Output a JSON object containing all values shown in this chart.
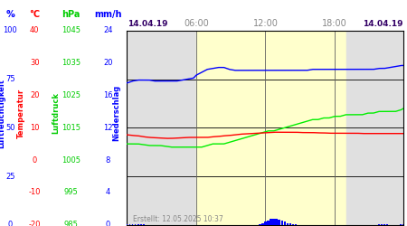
{
  "title_left": "14.04.19",
  "title_right": "14.04.19",
  "x_ticks": [
    "06:00",
    "12:00",
    "18:00"
  ],
  "x_tick_positions": [
    0.25,
    0.5,
    0.75
  ],
  "date_label": "Erstellt: 12.05.2025 10:37",
  "axis_label_blue": "Luftfeuchtigkeit",
  "axis_label_red": "Temperatur",
  "axis_label_green": "Luftdruck",
  "axis_label_blue2": "Niederschlag",
  "plot_bg_day": "#FFFFCC",
  "plot_bg_night": "#E0E0E0",
  "sunrise": 0.25,
  "sunset": 0.792,
  "pct_range": [
    0,
    100
  ],
  "temp_range": [
    -20,
    40
  ],
  "hpa_range": [
    985,
    1045
  ],
  "mmh_range": [
    0,
    24
  ],
  "pct_ticks": [
    0,
    25,
    50,
    75,
    100
  ],
  "temp_ticks": [
    -20,
    -10,
    0,
    10,
    20,
    30,
    40
  ],
  "hpa_ticks": [
    985,
    995,
    1005,
    1015,
    1025,
    1035,
    1045
  ],
  "mmh_ticks": [
    0,
    4,
    8,
    12,
    16,
    20,
    24
  ],
  "blue_x": [
    0.0,
    0.01,
    0.02,
    0.04,
    0.06,
    0.08,
    0.1,
    0.12,
    0.14,
    0.16,
    0.18,
    0.2,
    0.22,
    0.24,
    0.25,
    0.27,
    0.29,
    0.31,
    0.33,
    0.35,
    0.37,
    0.39,
    0.41,
    0.43,
    0.45,
    0.47,
    0.49,
    0.51,
    0.53,
    0.55,
    0.57,
    0.59,
    0.61,
    0.63,
    0.65,
    0.67,
    0.69,
    0.71,
    0.73,
    0.75,
    0.77,
    0.79,
    0.81,
    0.83,
    0.85,
    0.87,
    0.89,
    0.91,
    0.93,
    0.95,
    0.97,
    0.99,
    1.0
  ],
  "blue_y": [
    73,
    73.5,
    74,
    74.5,
    74.5,
    74.5,
    74,
    74,
    74,
    74,
    74,
    74.5,
    75,
    75.5,
    77,
    78.5,
    80,
    80.5,
    81,
    81,
    80,
    79.5,
    79.5,
    79.5,
    79.5,
    79.5,
    79.5,
    79.5,
    79.5,
    79.5,
    79.5,
    79.5,
    79.5,
    79.5,
    79.5,
    80,
    80,
    80,
    80,
    80,
    80,
    80,
    80,
    80,
    80,
    80,
    80,
    80.5,
    80.5,
    81,
    81.5,
    82,
    82
  ],
  "green_x": [
    0.0,
    0.04,
    0.08,
    0.12,
    0.16,
    0.2,
    0.24,
    0.25,
    0.27,
    0.29,
    0.31,
    0.33,
    0.35,
    0.37,
    0.39,
    0.41,
    0.43,
    0.45,
    0.47,
    0.49,
    0.51,
    0.53,
    0.55,
    0.57,
    0.59,
    0.61,
    0.63,
    0.65,
    0.67,
    0.69,
    0.71,
    0.73,
    0.75,
    0.77,
    0.79,
    0.81,
    0.83,
    0.85,
    0.87,
    0.89,
    0.91,
    0.93,
    0.95,
    0.97,
    0.99,
    1.0
  ],
  "green_y": [
    1010,
    1010,
    1009.5,
    1009.5,
    1009,
    1009,
    1009,
    1009,
    1009,
    1009.5,
    1010,
    1010,
    1010,
    1010.5,
    1011,
    1011.5,
    1012,
    1012.5,
    1013,
    1013.5,
    1014,
    1014,
    1014.5,
    1015,
    1015.5,
    1016,
    1016.5,
    1017,
    1017.5,
    1017.5,
    1018,
    1018,
    1018.5,
    1018.5,
    1019,
    1019,
    1019,
    1019,
    1019.5,
    1019.5,
    1020,
    1020,
    1020,
    1020,
    1020.5,
    1021
  ],
  "red_x": [
    0.0,
    0.02,
    0.04,
    0.06,
    0.08,
    0.1,
    0.12,
    0.14,
    0.16,
    0.18,
    0.2,
    0.22,
    0.24,
    0.25,
    0.27,
    0.29,
    0.31,
    0.33,
    0.35,
    0.37,
    0.39,
    0.41,
    0.43,
    0.45,
    0.47,
    0.49,
    0.51,
    0.53,
    0.55,
    0.57,
    0.59,
    0.61,
    0.63,
    0.65,
    0.67,
    0.69,
    0.71,
    0.73,
    0.75,
    0.77,
    0.79,
    0.81,
    0.83,
    0.85,
    0.87,
    0.89,
    0.91,
    0.93,
    0.95,
    0.97,
    0.99,
    1.0
  ],
  "red_y": [
    7.8,
    7.6,
    7.5,
    7.2,
    7.0,
    6.9,
    6.8,
    6.7,
    6.7,
    6.8,
    6.9,
    7.0,
    7.0,
    7.0,
    7.0,
    7.0,
    7.2,
    7.3,
    7.5,
    7.6,
    7.8,
    8.0,
    8.1,
    8.2,
    8.3,
    8.4,
    8.5,
    8.6,
    8.6,
    8.6,
    8.6,
    8.6,
    8.5,
    8.5,
    8.5,
    8.4,
    8.4,
    8.3,
    8.3,
    8.3,
    8.3,
    8.3,
    8.3,
    8.2,
    8.2,
    8.2,
    8.2,
    8.2,
    8.2,
    8.2,
    8.2,
    8.2
  ],
  "precip_x_bars": [
    0.48,
    0.49,
    0.5,
    0.51,
    0.52,
    0.53,
    0.54,
    0.55,
    0.56,
    0.57,
    0.58,
    0.59,
    0.6,
    0.61,
    0.91,
    0.92,
    0.93
  ],
  "precip_y_bars": [
    0.3,
    0.8,
    1.5,
    2.2,
    2.8,
    3.2,
    3.0,
    2.5,
    2.0,
    1.5,
    1.0,
    0.7,
    0.4,
    0.2,
    0.3,
    0.4,
    0.2
  ],
  "blue_bottom_x": [
    0.0,
    0.01,
    0.02,
    0.03,
    0.04,
    0.05,
    0.06,
    0.91,
    0.92,
    0.93,
    0.94,
    0.99,
    1.0
  ],
  "blue_bottom_y": [
    0.5,
    0.5,
    0.5,
    0.5,
    0.5,
    0.3,
    0.2,
    0.2,
    0.3,
    0.3,
    0.2,
    0.2,
    0.3
  ]
}
